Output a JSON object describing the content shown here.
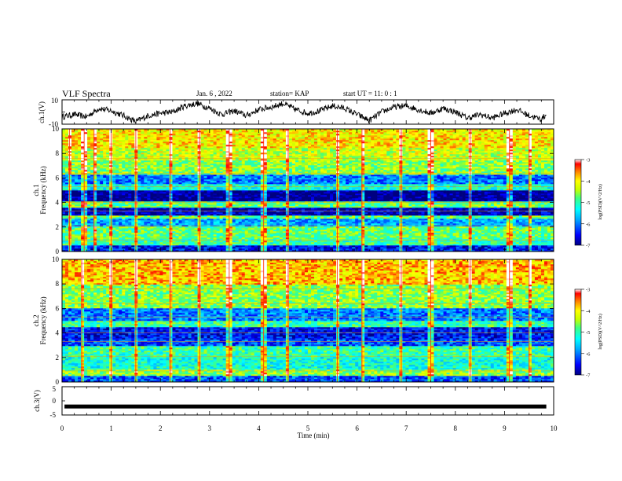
{
  "header": {
    "title": "VLF Spectra",
    "date": "Jan. 6 , 2022",
    "station": "station= KAP",
    "start_ut": "start UT = 11: 0 : 1"
  },
  "colors": {
    "axis": "#000000",
    "colormap": [
      "#000080",
      "#0000ff",
      "#00aaff",
      "#00ffff",
      "#40ff80",
      "#c8ff00",
      "#ffff00",
      "#ff8000",
      "#ff0000",
      "#ffffff"
    ]
  },
  "chart_data": [
    {
      "type": "line",
      "id": "ch1",
      "ylabel": "ch.1(V)",
      "ylim": [
        -10,
        10
      ],
      "yticks": [
        "10",
        "-10"
      ],
      "xlim": [
        0,
        10
      ],
      "series": [
        {
          "x": [
            0,
            0.25,
            0.5,
            0.75,
            1.0,
            1.25,
            1.5,
            1.75,
            2.0,
            2.25,
            2.5,
            2.75,
            3.0,
            3.25,
            3.5,
            3.75,
            4.0,
            4.25,
            4.5,
            4.75,
            5.0,
            5.25,
            5.5,
            5.75,
            6.0,
            6.25,
            6.5,
            6.75,
            7.0,
            7.25,
            7.5,
            7.75,
            8.0,
            8.25,
            8.5,
            8.75,
            9.0,
            9.25,
            9.5,
            9.75,
            9.85
          ],
          "values": [
            -4,
            -2,
            -4,
            3,
            1,
            -3,
            -8,
            -3,
            -1,
            0,
            5,
            7,
            3,
            -2,
            1,
            -3,
            2,
            4,
            7,
            2,
            -1,
            1,
            5,
            3,
            -2,
            -7,
            0,
            4,
            5,
            2,
            -1,
            3,
            0,
            -5,
            -2,
            -5,
            -1,
            2,
            -3,
            -6,
            -2
          ]
        }
      ]
    },
    {
      "type": "heatmap",
      "id": "ch1-spec",
      "ylabel": "ch.1",
      "ylabel2": "Frequency (kHz)",
      "ylim": [
        0,
        10
      ],
      "yticks": [
        "0",
        "2",
        "4",
        "6",
        "8",
        "10"
      ],
      "xlim": [
        0,
        10
      ],
      "colorbar": {
        "label": "log(PSD)(V^2/Hz)",
        "range": [
          -7,
          -3
        ],
        "ticks": [
          "-3",
          "-4",
          "-5",
          "-6",
          "-7"
        ]
      },
      "bands": [
        {
          "f0": 0,
          "f1": 0.5,
          "log": -6.5
        },
        {
          "f0": 0.5,
          "f1": 1.0,
          "log": -5.0
        },
        {
          "f0": 1.0,
          "f1": 2.0,
          "log": -4.8
        },
        {
          "f0": 2.0,
          "f1": 2.7,
          "log": -5.8
        },
        {
          "f0": 2.7,
          "f1": 3.0,
          "log": -4.8
        },
        {
          "f0": 3.0,
          "f1": 3.6,
          "log": -6.8
        },
        {
          "f0": 3.6,
          "f1": 4.1,
          "log": -4.8
        },
        {
          "f0": 4.1,
          "f1": 5.0,
          "log": -7.0
        },
        {
          "f0": 5.0,
          "f1": 5.5,
          "log": -5.2
        },
        {
          "f0": 5.5,
          "f1": 6.3,
          "log": -6.0
        },
        {
          "f0": 6.3,
          "f1": 7.5,
          "log": -4.6
        },
        {
          "f0": 7.5,
          "f1": 8.5,
          "log": -4.3
        },
        {
          "f0": 8.5,
          "f1": 10,
          "log": -4.0
        }
      ],
      "spikes_min": [
        0.15,
        0.45,
        0.65,
        1.0,
        1.5,
        2.2,
        2.8,
        3.4,
        4.1,
        4.6,
        5.6,
        6.1,
        6.9,
        7.5,
        8.3,
        9.1,
        9.5
      ]
    },
    {
      "type": "heatmap",
      "id": "ch2-spec",
      "ylabel": "ch.2",
      "ylabel2": "Frequency (kHz)",
      "ylim": [
        0,
        10
      ],
      "yticks": [
        "0",
        "2",
        "4",
        "6",
        "8",
        "10"
      ],
      "xlim": [
        0,
        10
      ],
      "colorbar": {
        "label": "log(PSD)(V^2/Hz)",
        "range": [
          -7,
          -3
        ],
        "ticks": [
          "-3",
          "-4",
          "-5",
          "-6",
          "-7"
        ]
      },
      "bands": [
        {
          "f0": 0,
          "f1": 0.5,
          "log": -6.2
        },
        {
          "f0": 0.5,
          "f1": 1.0,
          "log": -4.6
        },
        {
          "f0": 1.0,
          "f1": 2.0,
          "log": -5.2
        },
        {
          "f0": 2.0,
          "f1": 3.0,
          "log": -5.0
        },
        {
          "f0": 3.0,
          "f1": 3.5,
          "log": -6.2
        },
        {
          "f0": 3.5,
          "f1": 4.5,
          "log": -6.5
        },
        {
          "f0": 4.5,
          "f1": 5.0,
          "log": -5.0
        },
        {
          "f0": 5.0,
          "f1": 6.0,
          "log": -6.0
        },
        {
          "f0": 6.0,
          "f1": 8.0,
          "log": -4.6
        },
        {
          "f0": 8.0,
          "f1": 10,
          "log": -3.8
        }
      ],
      "spikes_min": [
        0.4,
        1.0,
        1.5,
        2.2,
        2.8,
        3.4,
        4.1,
        4.6,
        5.6,
        6.1,
        6.9,
        7.5,
        8.3,
        9.1,
        9.5
      ]
    },
    {
      "type": "line",
      "id": "ch3",
      "ylabel": "ch.3(V)",
      "ylim": [
        -5,
        5
      ],
      "yticks": [
        "5",
        "0",
        "-5"
      ],
      "xlim": [
        0,
        10
      ],
      "xlabel": "Time (min)",
      "xticks": [
        "0",
        "1",
        "2",
        "3",
        "4",
        "5",
        "6",
        "7",
        "8",
        "9",
        "10"
      ],
      "series": [
        {
          "x": [
            0.05,
            9.85
          ],
          "values": [
            -2,
            -2
          ]
        }
      ]
    }
  ]
}
